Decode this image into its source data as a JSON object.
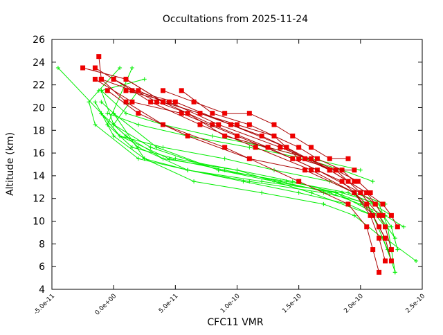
{
  "chart_data": {
    "type": "line",
    "title": "Occultations from 2025-11-24",
    "xlabel": "CFC11 VMR",
    "ylabel": "Altitude (km)",
    "xlim": [
      -5e-11,
      2.5e-10
    ],
    "ylim": [
      4,
      26
    ],
    "x_ticks": [
      -5e-11,
      0,
      5e-11,
      1e-10,
      1.5e-10,
      2e-10,
      2.5e-10
    ],
    "x_tick_labels": [
      "-5.0e-11",
      "0.0e+00",
      "5.0e-11",
      "1.0e-10",
      "1.5e-10",
      "2.0e-10",
      "2.5e-10"
    ],
    "y_ticks": [
      4,
      6,
      8,
      10,
      12,
      14,
      16,
      18,
      20,
      22,
      24,
      26
    ],
    "y_tick_labels": [
      "4",
      "6",
      "8",
      "10",
      "12",
      "14",
      "16",
      "18",
      "20",
      "22",
      "24",
      "26"
    ],
    "grid": false,
    "legend": "none",
    "series_style": {
      "green": {
        "color": "#00ee00",
        "marker": "plus"
      },
      "red": {
        "color": "#ee0000",
        "line_color": "#aa0000",
        "marker": "square"
      }
    },
    "series": [
      {
        "style": "green",
        "x": [
          2.28e-10,
          2.25e-10,
          2.22e-10,
          2.15e-10,
          1.85e-10,
          1.2e-10,
          6e-11,
          2e-11,
          -1.5e-11,
          -2e-11,
          -1.2e-11,
          5e-12
        ],
        "y": [
          5.5,
          7.5,
          9.5,
          11.5,
          12.5,
          13.5,
          14.5,
          15.5,
          18.5,
          20.5,
          21.5,
          23.5
        ]
      },
      {
        "style": "green",
        "x": [
          2.45e-10,
          2.2e-10,
          2.1e-10,
          1.6e-10,
          1e-10,
          4e-11,
          1e-11,
          -1e-11,
          -4.5e-11
        ],
        "y": [
          6.5,
          8.5,
          10.5,
          12.5,
          14.5,
          15.5,
          17.5,
          19.5,
          23.5
        ]
      },
      {
        "style": "green",
        "x": [
          2.3e-10,
          2.25e-10,
          2.12e-10,
          1.9e-10,
          1.4e-10,
          8.5e-11,
          3e-11,
          0.0,
          -1e-11,
          2.5e-11
        ],
        "y": [
          7.5,
          9.5,
          11.5,
          12.5,
          13.5,
          14.5,
          16.5,
          18.5,
          21.5,
          22.5
        ]
      },
      {
        "style": "green",
        "x": [
          2.25e-10,
          2.18e-10,
          1.95e-10,
          1.7e-10,
          1.2e-10,
          6.5e-11,
          2.5e-11,
          0.0,
          -1.5e-11
        ],
        "y": [
          6.5,
          8.5,
          10.5,
          11.5,
          12.5,
          13.5,
          15.5,
          17.5,
          20.5
        ]
      },
      {
        "style": "green",
        "x": [
          2.35e-10,
          2.2e-10,
          2e-10,
          1.75e-10,
          1.35e-10,
          9e-11,
          4.5e-11,
          5e-12,
          -1e-11
        ],
        "y": [
          9.5,
          10.5,
          11.5,
          12.5,
          13.5,
          14.5,
          15.5,
          17.5,
          19.5
        ]
      },
      {
        "style": "green",
        "x": [
          2.28e-10,
          2.15e-10,
          1.8e-10,
          1.45e-10,
          1e-10,
          5e-11,
          1.5e-11,
          -5e-12,
          1.5e-11
        ],
        "y": [
          8.5,
          10.5,
          12.5,
          13.5,
          14.5,
          15.5,
          16.5,
          18.5,
          23.5
        ]
      },
      {
        "style": "green",
        "x": [
          2.2e-10,
          2.05e-10,
          1.8e-10,
          1.3e-10,
          8.5e-11,
          3.5e-11,
          0.0,
          -1e-11
        ],
        "y": [
          9.5,
          11.5,
          12.5,
          13.5,
          14.5,
          16.5,
          19.5,
          20.5
        ]
      },
      {
        "style": "green",
        "x": [
          2.25e-10,
          2.1e-10,
          1.7e-10,
          1.1e-10,
          6e-11,
          2e-11,
          0.0,
          2e-11
        ],
        "y": [
          10.5,
          11.5,
          12.5,
          13.5,
          14.5,
          16.5,
          18.5,
          21.5
        ]
      },
      {
        "style": "green",
        "x": [
          2.2e-10,
          1.95e-10,
          1.75e-10,
          1.3e-10,
          9e-11,
          4e-11,
          5e-12,
          -1e-11
        ],
        "y": [
          11.5,
          12.5,
          13.5,
          14.5,
          15.5,
          16.5,
          17.5,
          19.5
        ]
      },
      {
        "style": "green",
        "x": [
          2.1e-10,
          1.85e-10,
          1.55e-10,
          1.1e-10,
          6e-11,
          2e-11,
          -5e-12
        ],
        "y": [
          13.5,
          14.5,
          15.5,
          16.5,
          17.5,
          18.5,
          19.5
        ]
      },
      {
        "style": "green",
        "x": [
          2e-10,
          1.6e-10,
          1.25e-10,
          8e-11,
          4e-11,
          1e-11,
          -1e-11
        ],
        "y": [
          14.5,
          15.5,
          16.5,
          17.5,
          18.5,
          19.5,
          21.5
        ]
      },
      {
        "style": "green",
        "x": [
          2.28e-10,
          2.22e-10,
          2.1e-10,
          1.9e-10,
          1.5e-10,
          1.05e-10,
          6e-11,
          2.5e-11,
          0.0
        ],
        "y": [
          5.5,
          7.5,
          10.5,
          11.5,
          12.5,
          13.5,
          14.5,
          15.5,
          19.5
        ]
      },
      {
        "style": "red",
        "x": [
          2.15e-10,
          2.1e-10,
          2.05e-10,
          1.9e-10,
          1.5e-10,
          9e-11,
          4e-11,
          1e-11,
          -1e-11,
          -1.2e-11
        ],
        "y": [
          5.5,
          7.5,
          9.5,
          11.5,
          13.5,
          16.5,
          18.5,
          20.5,
          22.5,
          24.5
        ]
      },
      {
        "style": "red",
        "x": [
          2.2e-10,
          2.15e-10,
          2.08e-10,
          1.95e-10,
          1.6e-10,
          1.15e-10,
          7e-11,
          3e-11,
          0.0,
          -1.5e-11
        ],
        "y": [
          6.5,
          8.5,
          10.5,
          12.5,
          14.5,
          16.5,
          18.5,
          20.5,
          22.5,
          23.5
        ]
      },
      {
        "style": "red",
        "x": [
          2.25e-10,
          2.2e-10,
          2.15e-10,
          2e-10,
          1.65e-10,
          1.25e-10,
          8e-11,
          4e-11,
          1e-11,
          -2.5e-11
        ],
        "y": [
          7.5,
          9.5,
          10.5,
          12.5,
          14.5,
          16.5,
          18.5,
          20.5,
          22.5,
          23.5
        ]
      },
      {
        "style": "red",
        "x": [
          2.3e-10,
          2.25e-10,
          2.18e-10,
          2.05e-10,
          1.75e-10,
          1.4e-10,
          9.5e-11,
          5e-11,
          1.5e-11,
          -1e-11
        ],
        "y": [
          9.5,
          10.5,
          11.5,
          12.5,
          14.5,
          16.5,
          18.5,
          20.5,
          21.5,
          22.5
        ]
      },
      {
        "style": "red",
        "x": [
          2.25e-10,
          2.2e-10,
          2.1e-10,
          1.95e-10,
          1.55e-10,
          1.1e-10,
          6e-11,
          2e-11,
          -5e-12
        ],
        "y": [
          6.5,
          8.5,
          10.5,
          12.5,
          14.5,
          15.5,
          17.5,
          19.5,
          21.5
        ]
      },
      {
        "style": "red",
        "x": [
          2.2e-10,
          2.15e-10,
          2.05e-10,
          1.85e-10,
          1.45e-10,
          1e-10,
          5.5e-11,
          1.5e-11,
          -1.5e-11
        ],
        "y": [
          8.5,
          9.5,
          11.5,
          13.5,
          15.5,
          17.5,
          19.5,
          20.5,
          22.5
        ]
      },
      {
        "style": "red",
        "x": [
          2.18e-10,
          2.12e-10,
          2e-10,
          1.8e-10,
          1.35e-10,
          8.5e-11,
          4.5e-11,
          1e-11
        ],
        "y": [
          10.5,
          11.5,
          12.5,
          14.5,
          16.5,
          18.5,
          20.5,
          21.5
        ]
      },
      {
        "style": "red",
        "x": [
          2.12e-10,
          2.05e-10,
          1.9e-10,
          1.6e-10,
          1.25e-10,
          9e-11,
          6e-11,
          3.5e-11,
          0.0
        ],
        "y": [
          11.5,
          12.5,
          13.5,
          15.5,
          16.5,
          17.5,
          19.5,
          20.5,
          22.5
        ]
      },
      {
        "style": "red",
        "x": [
          2.08e-10,
          1.98e-10,
          1.8e-10,
          1.5e-10,
          1.3e-10,
          1e-10,
          7e-11,
          4e-11,
          2e-11
        ],
        "y": [
          12.5,
          13.5,
          14.5,
          15.5,
          17.5,
          18.5,
          19.5,
          20.5,
          21.5
        ]
      },
      {
        "style": "red",
        "x": [
          1.95e-10,
          1.85e-10,
          1.65e-10,
          1.5e-10,
          1.3e-10,
          1.1e-10,
          8e-11,
          5.5e-11
        ],
        "y": [
          13.5,
          14.5,
          15.5,
          16.5,
          17.5,
          18.5,
          19.5,
          21.5
        ]
      },
      {
        "style": "red",
        "x": [
          1.9e-10,
          1.75e-10,
          1.6e-10,
          1.45e-10,
          1.3e-10,
          1.1e-10,
          9e-11,
          6.5e-11,
          4e-11
        ],
        "y": [
          15.5,
          15.5,
          16.5,
          17.5,
          18.5,
          19.5,
          19.5,
          20.5,
          21.5
        ]
      },
      {
        "style": "red",
        "x": [
          1.95e-10,
          1.75e-10,
          1.55e-10,
          1.4e-10,
          1.2e-10,
          9.5e-11,
          7e-11,
          4e-11,
          1e-11
        ],
        "y": [
          14.5,
          14.5,
          15.5,
          16.5,
          17.5,
          18.5,
          19.5,
          20.5,
          22.5
        ]
      }
    ]
  }
}
